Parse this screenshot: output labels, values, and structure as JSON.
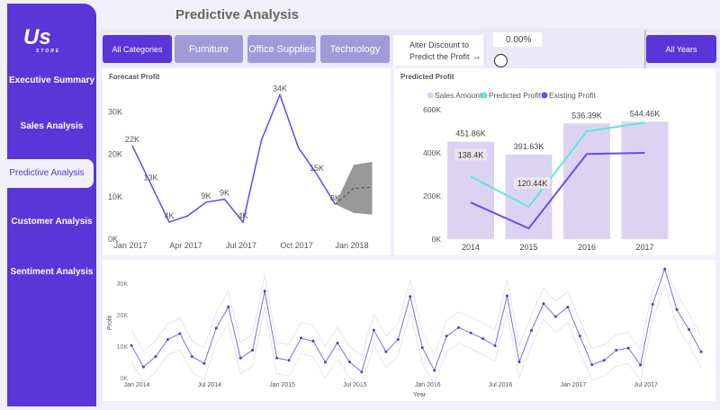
{
  "header": {
    "title": "Predictive Analysis"
  },
  "logo": {
    "text": "Us",
    "sub": "STORE"
  },
  "sidebar": {
    "items": [
      {
        "label": "Executive Summary"
      },
      {
        "label": "Sales Analysis"
      },
      {
        "label": "Predictive Analysis",
        "active": true
      },
      {
        "label": "Customer Analysis"
      },
      {
        "label": "Sentiment Analysis"
      }
    ]
  },
  "filters": {
    "categories": [
      {
        "label": "All Categories",
        "selected": true
      },
      {
        "label": "Furniture"
      },
      {
        "label": "Office Supplies"
      },
      {
        "label": "Technology"
      }
    ],
    "discount_label_1": "Alter Discount to",
    "discount_label_2": "Predict the Profit",
    "discount_value": "0.00%",
    "discount_slider_value": 0,
    "years": "All Years"
  },
  "colors": {
    "accent": "#5a35d8",
    "chip": "#a09ad8",
    "bar": "#dcd3f2",
    "predicted": "#5ee6da",
    "existing": "#6a4de8"
  },
  "chart_data": [
    {
      "type": "line",
      "title": "Forecast Profit",
      "x": [
        "Jan 2017",
        "Feb 2017",
        "Mar 2017",
        "Apr 2017",
        "May 2017",
        "Jun 2017",
        "Jul 2017",
        "Aug 2017",
        "Sep 2017",
        "Oct 2017",
        "Nov 2017",
        "Dec 2017"
      ],
      "values": [
        22,
        13,
        4,
        5.5,
        8.7,
        9.4,
        4,
        23.3,
        34,
        21.6,
        15.3,
        8.2
      ],
      "data_labels": [
        {
          "i": 0,
          "text": "22K"
        },
        {
          "i": 1,
          "text": "13K"
        },
        {
          "i": 2,
          "text": "4K"
        },
        {
          "i": 4,
          "text": "9K"
        },
        {
          "i": 5,
          "text": "9K"
        },
        {
          "i": 6,
          "text": "4K"
        },
        {
          "i": 8,
          "text": "34K"
        },
        {
          "i": 10,
          "text": "15K"
        },
        {
          "i": 11,
          "text": "8K"
        }
      ],
      "forecast": {
        "x": [
          "Dec 2017",
          "Jan 2018",
          "Feb 2018"
        ],
        "values": [
          8.2,
          12,
          12.2
        ],
        "upper": [
          8.2,
          17.5,
          18.2
        ],
        "lower": [
          8.2,
          6.2,
          5.8
        ]
      },
      "xticks": [
        "Jan 2017",
        "Apr 2017",
        "Jul 2017",
        "Oct 2017",
        "Jan 2018"
      ],
      "yticks": [
        "0K",
        "10K",
        "20K",
        "30K"
      ],
      "ylim": [
        0,
        36
      ],
      "unit": "K"
    },
    {
      "type": "bar",
      "title": "Predicted Profit",
      "categories": [
        "2014",
        "2015",
        "2016",
        "2017"
      ],
      "series": [
        {
          "name": "Sales Amount",
          "values": [
            451.86,
            391.63,
            536.39,
            544.46
          ],
          "labels": [
            "451.86K",
            "391.63K",
            "536.39K",
            "544.46K"
          ]
        },
        {
          "name": "Predicted Profit",
          "values": [
            290,
            150,
            500,
            540
          ]
        },
        {
          "name": "Existing Profit",
          "values": [
            170,
            50,
            395,
            400
          ]
        }
      ],
      "annotations": [
        {
          "i": 0,
          "text": "138.4K"
        },
        {
          "i": 1,
          "text": "120.44K"
        }
      ],
      "yticks": [
        "0K",
        "200K",
        "400K",
        "600K"
      ],
      "ylim": [
        0,
        600
      ],
      "unit": "K"
    },
    {
      "type": "line",
      "xlabel": "Year",
      "ylabel": "Profit",
      "xticks": [
        "Jan 2014",
        "Jul 2014",
        "Jan 2015",
        "Jul 2015",
        "Jan 2016",
        "Jul 2016",
        "Jan 2017",
        "Jul 2017"
      ],
      "yticks": [
        "0K",
        "10K",
        "20K",
        "30K"
      ],
      "ylim": [
        0,
        35
      ],
      "values": [
        10.2,
        3.4,
        6.7,
        12.1,
        14,
        6.7,
        4.5,
        15.7,
        22.5,
        6.2,
        8.7,
        27.5,
        6.2,
        5.5,
        12.6,
        11.6,
        4.9,
        11,
        5,
        1.8,
        15.1,
        8.2,
        12.1,
        25.8,
        9.5,
        2.3,
        13.2,
        15.9,
        14.2,
        12.4,
        10.1,
        26,
        5,
        15,
        23.5,
        19.4,
        22.4,
        13.2,
        4.1,
        5.5,
        8.7,
        9.4,
        4,
        23.3,
        34.5,
        21.6,
        15.3,
        8.2
      ]
    }
  ]
}
